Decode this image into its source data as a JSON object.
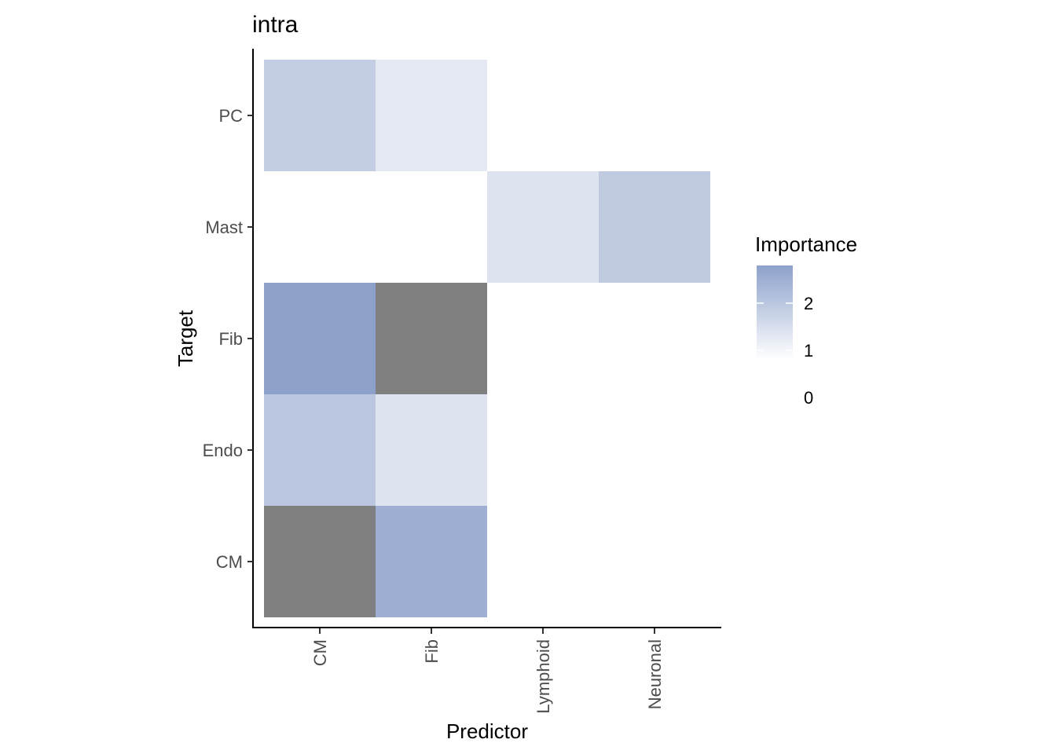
{
  "chart_data": {
    "type": "heatmap",
    "title": "intra",
    "xlabel": "Predictor",
    "ylabel": "Target",
    "x_categories": [
      "CM",
      "Fib",
      "Lymphoid",
      "Neuronal"
    ],
    "y_categories": [
      "CM",
      "Endo",
      "Fib",
      "Mast",
      "PC"
    ],
    "cells": [
      {
        "x": "CM",
        "y": "CM",
        "value": null
      },
      {
        "x": "Fib",
        "y": "CM",
        "value": 2.5
      },
      {
        "x": "CM",
        "y": "Endo",
        "value": 2.0
      },
      {
        "x": "Fib",
        "y": "Endo",
        "value": 1.4
      },
      {
        "x": "CM",
        "y": "Fib",
        "value": 2.8
      },
      {
        "x": "Fib",
        "y": "Fib",
        "value": null
      },
      {
        "x": "Lymphoid",
        "y": "Mast",
        "value": 1.4
      },
      {
        "x": "Neuronal",
        "y": "Mast",
        "value": 1.9
      },
      {
        "x": "CM",
        "y": "PC",
        "value": 1.85
      },
      {
        "x": "Fib",
        "y": "PC",
        "value": 1.3
      }
    ],
    "na_color": "#808080",
    "legend": {
      "title": "Importance",
      "position": "right",
      "ticks": [
        "2",
        "1",
        "0"
      ],
      "range": [
        0.8,
        2.8
      ],
      "low_color": "#ffffff",
      "high_color": "#8da1cb"
    },
    "grid": false
  }
}
